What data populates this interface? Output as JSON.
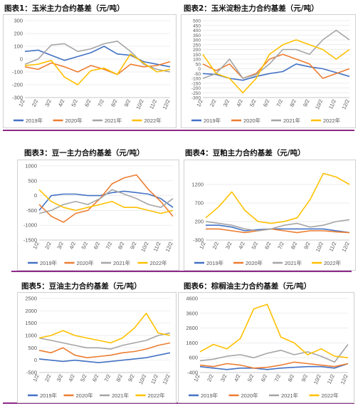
{
  "panels": [
    {
      "title": "图表1：玉米主力合约基差（元/吨）"
    },
    {
      "title": "图表2：玉米淀粉主力合约基差（元/吨）"
    },
    {
      "title": "图表3：豆一主力合约基差（元/吨）"
    },
    {
      "title": "图表4：豆粕主力合约基差（元/吨）"
    },
    {
      "title": "图表5：豆油主力合约基差（元/吨）"
    },
    {
      "title": "图表6：棕榈油主力合约基差（元/吨）"
    }
  ],
  "legend_labels": [
    "2019年",
    "2020年",
    "2021年",
    "2022年"
  ],
  "colors": {
    "s2019": "#4472c4",
    "s2020": "#ed7d31",
    "s2021": "#a5a5a5",
    "s2022": "#ffc000",
    "rule": "#8e2a8a"
  },
  "chart_data": [
    {
      "type": "line",
      "title": "图表1：玉米主力合约基差（元/吨）",
      "x": [
        "1/2",
        "2/2",
        "3/2",
        "4/2",
        "5/2",
        "6/2",
        "7/2",
        "8/2",
        "9/2",
        "10/2",
        "11/2",
        "12/2"
      ],
      "yticks": [
        -300,
        -200,
        -100,
        0,
        100,
        200,
        300
      ],
      "ylim": [
        -300,
        300
      ],
      "series": [
        {
          "name": "2019年",
          "values": [
            60,
            70,
            30,
            -10,
            20,
            50,
            100,
            40,
            30,
            -20,
            -40,
            -60
          ]
        },
        {
          "name": "2020年",
          "values": [
            -60,
            -80,
            -30,
            -60,
            -100,
            -50,
            -80,
            -120,
            -40,
            -60,
            -50,
            -20
          ]
        },
        {
          "name": "2021年",
          "values": [
            -40,
            0,
            110,
            120,
            60,
            80,
            120,
            140,
            60,
            -40,
            -80,
            -100
          ]
        },
        {
          "name": "2022年",
          "values": [
            -50,
            -40,
            -10,
            -140,
            -200,
            -90,
            -70,
            -120,
            40,
            -30,
            -100,
            -80
          ]
        }
      ]
    },
    {
      "type": "line",
      "title": "图表2：玉米淀粉主力合约基差（元/吨）",
      "x": [
        "1/2",
        "2/2",
        "3/2",
        "4/2",
        "5/2",
        "6/2",
        "7/2",
        "8/2",
        "9/2",
        "10/2",
        "11/2",
        "12/2"
      ],
      "yticks": [
        -300,
        -250,
        -200,
        -150,
        -100,
        -50,
        0,
        50,
        100,
        150,
        200,
        250,
        300,
        350,
        400,
        450,
        500
      ],
      "ylim": [
        -300,
        500
      ],
      "series": [
        {
          "name": "2019年",
          "values": [
            -50,
            -60,
            -100,
            -120,
            -80,
            -50,
            -30,
            50,
            20,
            0,
            -40,
            -80
          ]
        },
        {
          "name": "2020年",
          "values": [
            50,
            -20,
            50,
            -100,
            -50,
            100,
            150,
            100,
            50,
            -100,
            -50,
            0
          ]
        },
        {
          "name": "2021年",
          "values": [
            -100,
            -50,
            100,
            -100,
            -60,
            50,
            200,
            200,
            150,
            300,
            400,
            300
          ]
        },
        {
          "name": "2022年",
          "values": [
            150,
            -50,
            -100,
            -250,
            -100,
            150,
            250,
            300,
            250,
            200,
            100,
            200
          ]
        }
      ]
    },
    {
      "type": "line",
      "title": "图表3：豆一主力合约基差（元/吨）",
      "x": [
        "1/2",
        "2/2",
        "3/2",
        "4/2",
        "5/2",
        "6/2",
        "7/2",
        "8/2",
        "9/2",
        "10/2",
        "11/2",
        "12/2"
      ],
      "yticks": [
        -1500,
        -1000,
        -500,
        0,
        500,
        1000
      ],
      "ylim": [
        -1500,
        1000
      ],
      "series": [
        {
          "name": "2019年",
          "values": [
            -500,
            0,
            50,
            50,
            0,
            0,
            100,
            150,
            100,
            50,
            -100,
            -400
          ]
        },
        {
          "name": "2020年",
          "values": [
            -300,
            -700,
            -900,
            -600,
            -500,
            -100,
            400,
            600,
            700,
            200,
            -200,
            -700
          ]
        },
        {
          "name": "2021年",
          "values": [
            -600,
            -500,
            -300,
            -200,
            -300,
            -100,
            200,
            50,
            -100,
            -300,
            -400,
            -100
          ]
        },
        {
          "name": "2022年",
          "values": [
            200,
            -200,
            -400,
            -500,
            -400,
            -300,
            -200,
            -400,
            -400,
            -500,
            -600,
            -500
          ]
        }
      ]
    },
    {
      "type": "line",
      "title": "图表4：豆粕主力合约基差（元/吨）",
      "x": [
        "1/2",
        "2/2",
        "3/2",
        "4/2",
        "5/2",
        "6/2",
        "7/2",
        "8/2",
        "9/2",
        "10/2",
        "11/2",
        "12/2"
      ],
      "yticks": [
        -300,
        200,
        700,
        1200
      ],
      "ylim": [
        -300,
        1700
      ],
      "series": [
        {
          "name": "2019年",
          "values": [
            100,
            100,
            50,
            -50,
            -20,
            0,
            0,
            0,
            0,
            0,
            -50,
            -100
          ]
        },
        {
          "name": "2020年",
          "values": [
            0,
            0,
            -50,
            -100,
            -50,
            0,
            -50,
            -100,
            -50,
            -50,
            -80,
            -100
          ]
        },
        {
          "name": "2021年",
          "values": [
            200,
            150,
            100,
            0,
            -50,
            0,
            100,
            150,
            50,
            100,
            200,
            250
          ]
        },
        {
          "name": "2022年",
          "values": [
            300,
            600,
            1000,
            500,
            200,
            150,
            200,
            300,
            800,
            1500,
            1400,
            1200
          ]
        }
      ]
    },
    {
      "type": "line",
      "title": "图表5：豆油主力合约基差（元/吨）",
      "x": [
        "1/2",
        "2/2",
        "3/2",
        "4/2",
        "5/2",
        "6/2",
        "7/2",
        "8/2",
        "9/2",
        "10/2",
        "11/2",
        "12/2"
      ],
      "yticks": [
        -500,
        0,
        500,
        1000,
        1500,
        2000,
        2500
      ],
      "ylim": [
        -500,
        2500
      ],
      "series": [
        {
          "name": "2019年",
          "values": [
            50,
            0,
            -50,
            0,
            -50,
            -100,
            -50,
            0,
            50,
            100,
            200,
            300
          ]
        },
        {
          "name": "2020年",
          "values": [
            400,
            300,
            500,
            200,
            100,
            150,
            200,
            300,
            350,
            450,
            600,
            700
          ]
        },
        {
          "name": "2021年",
          "values": [
            900,
            800,
            700,
            600,
            500,
            500,
            450,
            600,
            700,
            800,
            1000,
            1100
          ]
        },
        {
          "name": "2022年",
          "values": [
            900,
            1000,
            1200,
            1000,
            900,
            800,
            700,
            900,
            1300,
            1900,
            1100,
            1000
          ]
        }
      ]
    },
    {
      "type": "line",
      "title": "图表6：棕榈油主力合约基差（元/吨）",
      "x": [
        "1/2",
        "2/2",
        "3/2",
        "4/2",
        "5/2",
        "6/2",
        "7/2",
        "8/2",
        "9/2",
        "10/2",
        "11/2",
        "12/2"
      ],
      "yticks": [
        -400,
        600,
        1600,
        2600,
        3600,
        4600
      ],
      "ylim": [
        -400,
        4600
      ],
      "series": [
        {
          "name": "2019年",
          "values": [
            0,
            -100,
            -200,
            -100,
            -100,
            -200,
            -100,
            -50,
            0,
            0,
            -100,
            200
          ]
        },
        {
          "name": "2020年",
          "values": [
            100,
            0,
            200,
            100,
            -100,
            -50,
            100,
            300,
            200,
            100,
            0,
            200
          ]
        },
        {
          "name": "2021年",
          "values": [
            400,
            500,
            700,
            800,
            600,
            900,
            1100,
            800,
            1000,
            700,
            300,
            1500
          ]
        },
        {
          "name": "2022年",
          "values": [
            1000,
            1500,
            1200,
            1900,
            3900,
            4200,
            2000,
            1600,
            800,
            1200,
            700,
            600
          ]
        }
      ]
    }
  ]
}
